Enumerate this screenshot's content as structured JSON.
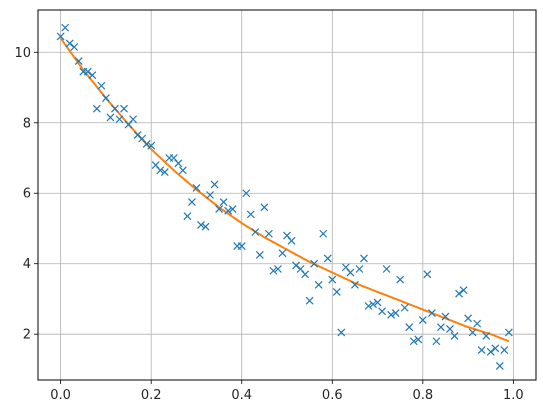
{
  "chart_data": {
    "type": "scatter",
    "title": "",
    "xlabel": "",
    "ylabel": "",
    "xlim": [
      -0.05,
      1.05
    ],
    "ylim": [
      0.7,
      11.2
    ],
    "grid": true,
    "xticks": [
      0.0,
      0.2,
      0.4,
      0.6,
      0.8,
      1.0
    ],
    "xtick_labels": [
      "0.0",
      "0.2",
      "0.4",
      "0.6",
      "0.8",
      "1.0"
    ],
    "yticks": [
      2,
      4,
      6,
      8,
      10
    ],
    "ytick_labels": [
      "2",
      "4",
      "6",
      "8",
      "10"
    ],
    "colors": {
      "points": "#1f77b4",
      "fit": "#ff7f0e",
      "grid": "#b0b0b0",
      "axes": "#000000"
    },
    "series": [
      {
        "type": "scatter",
        "marker": "x",
        "x": [
          0.0,
          0.01,
          0.02,
          0.03,
          0.04,
          0.05,
          0.06,
          0.07,
          0.08,
          0.09,
          0.1,
          0.11,
          0.12,
          0.13,
          0.14,
          0.15,
          0.16,
          0.17,
          0.18,
          0.19,
          0.2,
          0.21,
          0.22,
          0.23,
          0.24,
          0.25,
          0.26,
          0.27,
          0.28,
          0.29,
          0.3,
          0.31,
          0.32,
          0.33,
          0.34,
          0.35,
          0.36,
          0.37,
          0.38,
          0.39,
          0.4,
          0.41,
          0.42,
          0.43,
          0.44,
          0.45,
          0.46,
          0.47,
          0.48,
          0.49,
          0.5,
          0.51,
          0.52,
          0.53,
          0.54,
          0.55,
          0.56,
          0.57,
          0.58,
          0.59,
          0.6,
          0.61,
          0.62,
          0.63,
          0.64,
          0.65,
          0.66,
          0.67,
          0.68,
          0.69,
          0.7,
          0.71,
          0.72,
          0.73,
          0.74,
          0.75,
          0.76,
          0.77,
          0.78,
          0.79,
          0.8,
          0.81,
          0.82,
          0.83,
          0.84,
          0.85,
          0.86,
          0.87,
          0.88,
          0.89,
          0.9,
          0.91,
          0.92,
          0.93,
          0.94,
          0.95,
          0.96,
          0.97,
          0.98,
          0.99
        ],
        "y": [
          10.45,
          10.7,
          10.25,
          10.15,
          9.75,
          9.45,
          9.45,
          9.35,
          8.4,
          9.05,
          8.7,
          8.15,
          8.4,
          8.1,
          8.4,
          7.95,
          8.1,
          7.65,
          7.55,
          7.4,
          7.35,
          6.8,
          6.65,
          6.6,
          7.0,
          7.0,
          6.85,
          6.65,
          5.35,
          5.75,
          6.15,
          5.1,
          5.05,
          5.95,
          6.25,
          5.55,
          5.75,
          5.5,
          5.55,
          4.5,
          4.5,
          6.0,
          5.4,
          4.9,
          4.25,
          5.6,
          4.85,
          3.8,
          3.85,
          4.3,
          4.8,
          4.65,
          3.95,
          3.85,
          3.7,
          2.95,
          4.0,
          3.4,
          4.85,
          4.15,
          3.55,
          3.2,
          2.05,
          3.9,
          3.75,
          3.4,
          3.85,
          4.15,
          2.8,
          2.85,
          2.9,
          2.65,
          3.85,
          2.55,
          2.6,
          3.55,
          2.75,
          2.2,
          1.8,
          1.85,
          2.4,
          3.7,
          2.6,
          1.8,
          2.2,
          2.5,
          2.15,
          1.95,
          3.15,
          3.25,
          2.45,
          2.05,
          2.3,
          1.55,
          1.95,
          1.5,
          1.6,
          1.1,
          1.55,
          2.05
        ]
      },
      {
        "type": "line",
        "x": [
          0.0,
          0.05,
          0.1,
          0.15,
          0.2,
          0.25,
          0.3,
          0.35,
          0.4,
          0.45,
          0.5,
          0.55,
          0.6,
          0.65,
          0.7,
          0.75,
          0.8,
          0.85,
          0.9,
          0.95,
          0.99
        ],
        "y": [
          10.4,
          9.5,
          8.7,
          7.95,
          7.25,
          6.65,
          6.1,
          5.6,
          5.15,
          4.75,
          4.4,
          4.05,
          3.75,
          3.45,
          3.2,
          2.95,
          2.7,
          2.45,
          2.2,
          2.0,
          1.8
        ]
      }
    ]
  }
}
